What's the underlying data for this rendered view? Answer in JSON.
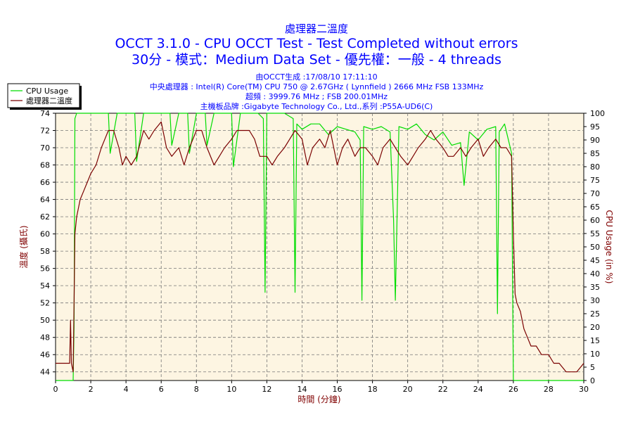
{
  "header": {
    "title": "處理器二溫度",
    "subtitle1": "OCCT 3.1.0 - CPU OCCT Test - Test Completed without errors",
    "subtitle2": "30分 - 模式：Medium Data Set - 優先權：一般 - 4 threads",
    "info": [
      "由OCCT生成 :17/08/10 17:11:10",
      "中央處理器 : Intel(R) Core(TM) CPU 750 @ 2.67GHz ( Lynnfield ) 2666 MHz FSB 133MHz",
      "超頻 : 3999.76 MHz ; FSB 200.01MHz",
      "主機板品牌 :Gigabyte Technology Co., Ltd.,系列 :P55A-UD6(C)"
    ]
  },
  "colors": {
    "plot_bg": "#fdf5e2",
    "cpu_usage": "#00dd00",
    "temperature": "#7a0000",
    "grid": "#777777",
    "text": "#0000ff"
  },
  "chart_data": {
    "type": "line",
    "xlabel": "時間 (分鐘)",
    "ylabel_left": "溫度 (攝氏)",
    "ylabel_right": "CPU Usage (in %)",
    "xlim": [
      0,
      30
    ],
    "ylim_left": [
      43,
      74
    ],
    "ylim_right": [
      0,
      100
    ],
    "x_ticks": [
      0,
      2,
      4,
      6,
      8,
      10,
      12,
      14,
      16,
      18,
      20,
      22,
      24,
      26,
      28,
      30
    ],
    "y_ticks_left": [
      44,
      46,
      48,
      50,
      52,
      54,
      56,
      58,
      60,
      62,
      64,
      66,
      68,
      70,
      72,
      74
    ],
    "y_ticks_right": [
      0,
      5,
      10,
      15,
      20,
      25,
      30,
      35,
      40,
      45,
      50,
      55,
      60,
      65,
      70,
      75,
      80,
      85,
      90,
      95,
      100
    ],
    "grid": true,
    "legend_position": "top-left",
    "series": [
      {
        "name": "CPU Usage",
        "axis": "right",
        "x": [
          0,
          0.5,
          0.9,
          1.0,
          1.05,
          1.1,
          1.2,
          1.5,
          2.0,
          2.5,
          3.0,
          3.1,
          3.5,
          4.0,
          4.5,
          4.6,
          5.0,
          5.5,
          6.0,
          6.5,
          6.6,
          7.0,
          7.5,
          7.6,
          8.0,
          8.5,
          8.6,
          9.0,
          9.5,
          10.0,
          10.1,
          10.5,
          11.0,
          11.5,
          11.8,
          11.9,
          12.0,
          12.5,
          13.0,
          13.5,
          13.6,
          13.7,
          14.0,
          14.5,
          15.0,
          15.5,
          16.0,
          16.5,
          17.0,
          17.3,
          17.4,
          17.5,
          18.0,
          18.5,
          19.0,
          19.2,
          19.3,
          19.5,
          20.0,
          20.5,
          21.0,
          21.5,
          22.0,
          22.5,
          23.0,
          23.2,
          23.5,
          24.0,
          24.5,
          25.0,
          25.1,
          25.2,
          25.5,
          25.9,
          26.0,
          26.05,
          26.5,
          27.0,
          28.0,
          29.0,
          30.0
        ],
        "values": [
          0,
          0,
          0,
          0,
          20,
          98,
          100,
          100,
          100,
          100,
          100,
          85,
          100,
          100,
          100,
          82,
          100,
          100,
          100,
          100,
          88,
          100,
          100,
          85,
          100,
          100,
          88,
          100,
          100,
          100,
          80,
          100,
          100,
          100,
          98,
          33,
          100,
          100,
          100,
          98,
          33,
          96,
          94,
          96,
          96,
          92,
          95,
          94,
          93,
          90,
          30,
          95,
          94,
          95,
          93,
          60,
          30,
          95,
          94,
          96,
          92,
          90,
          93,
          88,
          89,
          73,
          93,
          90,
          94,
          95,
          25,
          93,
          96,
          85,
          0,
          0,
          0,
          0,
          0,
          0,
          0
        ]
      },
      {
        "name": "處理器二溫度",
        "axis": "left",
        "x": [
          0,
          0.3,
          0.6,
          0.8,
          0.85,
          0.9,
          1.0,
          1.05,
          1.1,
          1.2,
          1.4,
          1.6,
          1.8,
          2.0,
          2.3,
          2.6,
          2.8,
          3.0,
          3.3,
          3.6,
          3.8,
          4.0,
          4.3,
          4.6,
          5.0,
          5.3,
          5.6,
          6.0,
          6.3,
          6.6,
          7.0,
          7.3,
          7.6,
          8.0,
          8.3,
          8.6,
          9.0,
          9.3,
          9.6,
          10.0,
          10.3,
          10.6,
          11.0,
          11.3,
          11.6,
          12.0,
          12.3,
          12.6,
          13.0,
          13.3,
          13.6,
          14.0,
          14.3,
          14.6,
          15.0,
          15.3,
          15.6,
          16.0,
          16.3,
          16.6,
          17.0,
          17.3,
          17.6,
          18.0,
          18.3,
          18.6,
          19.0,
          19.3,
          19.6,
          20.0,
          20.3,
          20.6,
          21.0,
          21.3,
          21.6,
          22.0,
          22.3,
          22.6,
          23.0,
          23.3,
          23.6,
          24.0,
          24.3,
          24.6,
          25.0,
          25.3,
          25.6,
          25.9,
          26.0,
          26.1,
          26.2,
          26.4,
          26.6,
          26.8,
          27.0,
          27.3,
          27.6,
          28.0,
          28.3,
          28.6,
          29.0,
          29.3,
          29.6,
          30.0
        ],
        "values": [
          45,
          45,
          45,
          45,
          50,
          45,
          44,
          52,
          60,
          62,
          64,
          65,
          66,
          67,
          68,
          70,
          71,
          72,
          72,
          70,
          68,
          69,
          68,
          69,
          72,
          71,
          72,
          73,
          70,
          69,
          70,
          68,
          70,
          72,
          72,
          70,
          68,
          69,
          70,
          71,
          72,
          72,
          72,
          71,
          69,
          69,
          68,
          69,
          70,
          71,
          72,
          71,
          68,
          70,
          71,
          70,
          72,
          68,
          70,
          71,
          69,
          70,
          70,
          69,
          68,
          70,
          71,
          70,
          69,
          68,
          69,
          70,
          71,
          72,
          71,
          70,
          69,
          69,
          70,
          69,
          70,
          71,
          69,
          70,
          71,
          70,
          70,
          69,
          60,
          53,
          52,
          51,
          49,
          48,
          47,
          47,
          46,
          46,
          45,
          45,
          44,
          44,
          44,
          45
        ]
      }
    ]
  }
}
